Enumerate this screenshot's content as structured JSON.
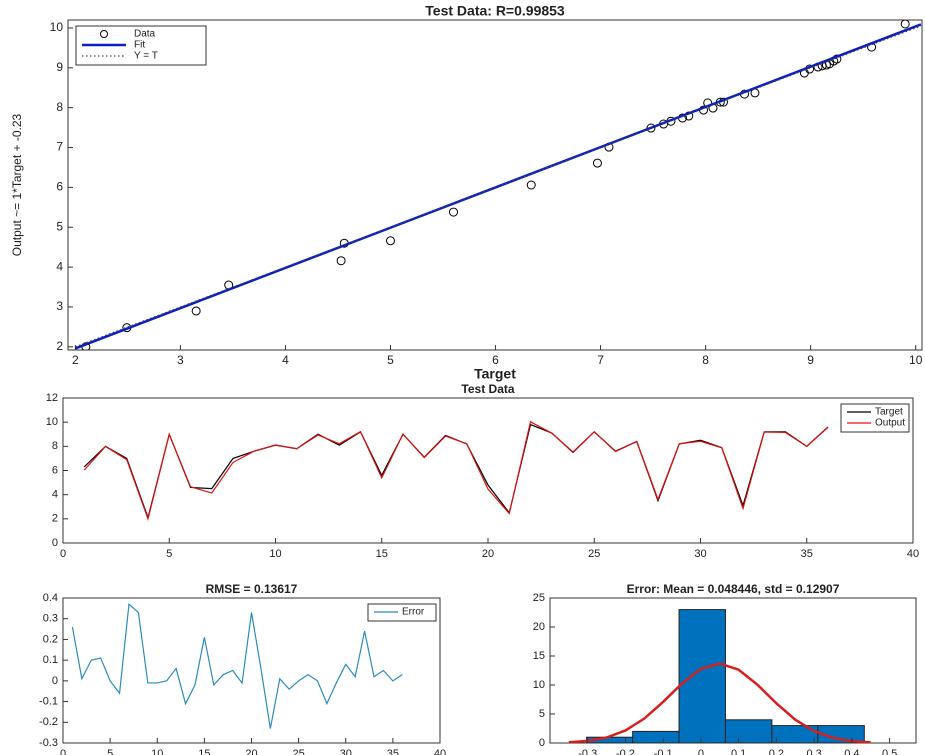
{
  "chart_data": [
    {
      "type": "scatter",
      "title": "Test Data: R=0.99853",
      "xlabel": "Target",
      "ylabel": "Output ~= 1*Target + -0.23",
      "xlim": [
        1.93,
        10.06
      ],
      "ylim": [
        1.92,
        10.2
      ],
      "xticks": [
        2,
        3,
        4,
        5,
        6,
        7,
        8,
        9,
        10
      ],
      "yticks": [
        2,
        3,
        4,
        5,
        6,
        7,
        8,
        9,
        10
      ],
      "legend": "upper left",
      "series": [
        {
          "name": "Data",
          "style": "markers",
          "color": "#000000",
          "x": [
            2.1,
            2.49,
            3.15,
            3.46,
            4.53,
            4.56,
            5.0,
            5.6,
            6.34,
            6.97,
            7.08,
            7.48,
            7.6,
            7.67,
            7.78,
            7.84,
            7.98,
            8.02,
            8.07,
            8.14,
            8.17,
            8.37,
            8.47,
            8.94,
            8.99,
            9.07,
            9.11,
            9.15,
            9.18,
            9.22,
            9.25,
            9.58,
            9.9
          ],
          "values": [
            2.0,
            2.48,
            2.9,
            3.55,
            4.16,
            4.6,
            4.66,
            5.38,
            6.06,
            6.61,
            7.01,
            7.49,
            7.59,
            7.66,
            7.74,
            7.79,
            7.94,
            8.12,
            7.99,
            8.14,
            8.14,
            8.34,
            8.37,
            8.87,
            8.97,
            9.02,
            9.05,
            9.07,
            9.1,
            9.17,
            9.22,
            9.52,
            10.1
          ]
        },
        {
          "name": "Fit",
          "style": "line",
          "color": "#0a1fc4",
          "x": [
            2,
            10.05
          ],
          "values": [
            1.96,
            10.09
          ]
        },
        {
          "name": "Y = T",
          "style": "dotted",
          "color": "#444444",
          "x": [
            2,
            10.05
          ],
          "values": [
            2,
            10.05
          ]
        }
      ]
    },
    {
      "type": "line",
      "title": "Test Data",
      "xlim": [
        0,
        40
      ],
      "ylim": [
        0,
        12
      ],
      "xticks": [
        0,
        5,
        10,
        15,
        20,
        25,
        30,
        35,
        40
      ],
      "yticks": [
        0,
        2,
        4,
        6,
        8,
        10,
        12
      ],
      "legend": "upper right",
      "x": [
        1,
        2,
        3,
        4,
        5,
        6,
        7,
        8,
        9,
        10,
        11,
        12,
        13,
        14,
        15,
        16,
        17,
        18,
        19,
        20,
        21,
        22,
        23,
        24,
        25,
        26,
        27,
        28,
        29,
        30,
        31,
        32,
        33,
        34,
        35,
        36
      ],
      "series": [
        {
          "name": "Target",
          "style": "line",
          "color": "#000000",
          "values": [
            6.3,
            8.0,
            7.0,
            2.1,
            9.0,
            4.6,
            4.5,
            7.0,
            7.6,
            8.1,
            7.8,
            9.0,
            8.1,
            9.2,
            5.6,
            9.0,
            7.1,
            8.9,
            8.2,
            4.8,
            2.5,
            9.8,
            9.1,
            7.5,
            9.2,
            7.6,
            8.4,
            3.5,
            8.2,
            8.5,
            7.9,
            3.1,
            9.2,
            9.2,
            8.0,
            9.6
          ]
        },
        {
          "name": "Output",
          "style": "line",
          "color": "#e01010",
          "values": [
            6.04,
            7.99,
            6.9,
            1.99,
            9.0,
            4.66,
            4.13,
            6.67,
            7.61,
            8.11,
            7.8,
            8.94,
            8.21,
            9.22,
            5.39,
            9.02,
            7.07,
            8.85,
            8.21,
            4.47,
            2.44,
            10.03,
            9.09,
            7.54,
            9.2,
            7.57,
            8.4,
            3.61,
            8.21,
            8.42,
            7.88,
            2.86,
            9.18,
            9.15,
            8.0,
            9.57
          ]
        }
      ]
    },
    {
      "type": "line",
      "title": "RMSE = 0.13617",
      "xlim": [
        0,
        40
      ],
      "ylim": [
        -0.3,
        0.4
      ],
      "xticks": [
        0,
        5,
        10,
        15,
        20,
        25,
        30,
        35,
        40
      ],
      "yticks": [
        -0.3,
        -0.2,
        -0.1,
        0,
        0.1,
        0.2,
        0.3,
        0.4
      ],
      "legend": "upper right",
      "x": [
        1,
        2,
        3,
        4,
        5,
        6,
        7,
        8,
        9,
        10,
        11,
        12,
        13,
        14,
        15,
        16,
        17,
        18,
        19,
        20,
        21,
        22,
        23,
        24,
        25,
        26,
        27,
        28,
        29,
        30,
        31,
        32,
        33,
        34,
        35,
        36
      ],
      "series": [
        {
          "name": "Error",
          "style": "line",
          "color": "#2b8cbe",
          "values": [
            0.26,
            0.01,
            0.1,
            0.11,
            0.0,
            -0.06,
            0.37,
            0.33,
            -0.01,
            -0.01,
            0.0,
            0.06,
            -0.11,
            -0.02,
            0.21,
            -0.02,
            0.03,
            0.05,
            -0.01,
            0.33,
            0.06,
            -0.23,
            0.01,
            -0.04,
            0.0,
            0.03,
            0.0,
            -0.11,
            -0.01,
            0.08,
            0.02,
            0.24,
            0.02,
            0.05,
            0.0,
            0.03
          ]
        }
      ]
    },
    {
      "type": "histogram",
      "title": "Error: Mean = 0.048446, std = 0.12907",
      "xlim": [
        -0.4,
        0.57
      ],
      "ylim": [
        0,
        25
      ],
      "xticks": [
        -0.3,
        -0.2,
        -0.1,
        0,
        0.1,
        0.2,
        0.3,
        0.4,
        0.5
      ],
      "yticks": [
        0,
        5,
        10,
        15,
        20,
        25
      ],
      "bins": [
        -0.303,
        -0.181,
        -0.058,
        0.065,
        0.188,
        0.31,
        0.433
      ],
      "counts": [
        1,
        2,
        23,
        4,
        3,
        3
      ],
      "color": "#0072bd",
      "curve": {
        "color": "#d62020",
        "x": [
          -0.35,
          -0.3,
          -0.25,
          -0.2,
          -0.15,
          -0.1,
          -0.05,
          0,
          0.05,
          0.1,
          0.15,
          0.2,
          0.25,
          0.3,
          0.35,
          0.4,
          0.45
        ],
        "values": [
          0.12,
          0.36,
          0.95,
          2.16,
          4.22,
          7.1,
          10.27,
          12.79,
          13.7,
          12.63,
          10.03,
          6.85,
          4.02,
          2.04,
          0.89,
          0.33,
          0.11
        ]
      }
    }
  ]
}
